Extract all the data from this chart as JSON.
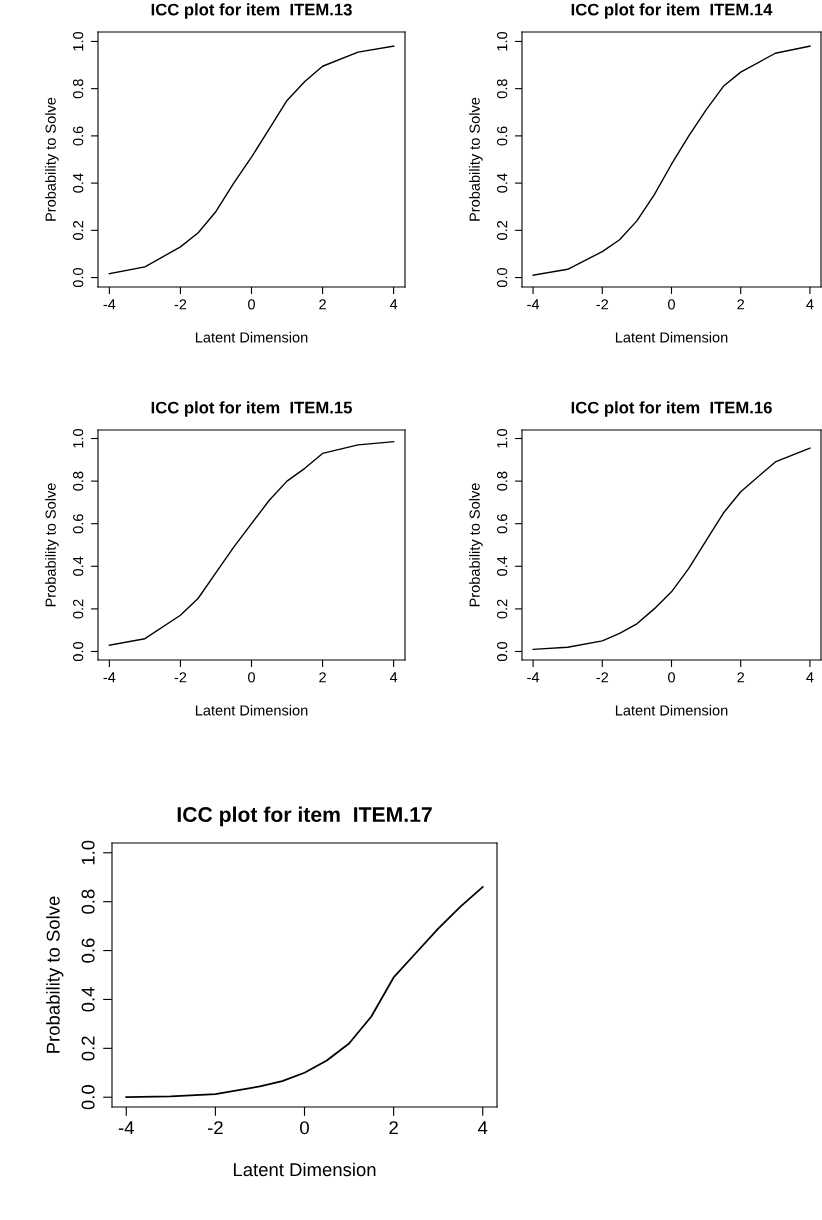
{
  "chart_data": [
    {
      "type": "line",
      "title": "ICC plot for item  ITEM.13",
      "xlabel": "Latent Dimension",
      "ylabel": "Probability to Solve",
      "xlim": [
        -4.32,
        4.32
      ],
      "ylim": [
        -0.04,
        1.04
      ],
      "xticks": [
        -4,
        -2,
        0,
        2,
        4
      ],
      "yticks": [
        {
          "value": 0,
          "label": "0.0"
        },
        {
          "value": 0.2,
          "label": "0.2"
        },
        {
          "value": 0.4,
          "label": "0.4"
        },
        {
          "value": 0.6,
          "label": "0.6"
        },
        {
          "value": 0.8,
          "label": "0.8"
        },
        {
          "value": 1,
          "label": "1.0"
        }
      ],
      "grid": false,
      "legend": false,
      "line_style": "solid",
      "x": [
        -4,
        -3,
        -2,
        -1.5,
        -1,
        -0.5,
        0,
        0.5,
        1,
        1.5,
        2,
        3,
        4
      ],
      "series": [
        {
          "color": "#000000",
          "values": [
            0.016,
            0.045,
            0.13,
            0.19,
            0.28,
            0.4,
            0.51,
            0.63,
            0.75,
            0.83,
            0.895,
            0.955,
            0.98
          ]
        }
      ]
    },
    {
      "type": "line",
      "title": "ICC plot for item  ITEM.14",
      "xlabel": "Latent Dimension",
      "ylabel": "Probability to Solve",
      "xlim": [
        -4.32,
        4.32
      ],
      "ylim": [
        -0.04,
        1.04
      ],
      "xticks": [
        -4,
        -2,
        0,
        2,
        4
      ],
      "yticks": [
        {
          "value": 0,
          "label": "0.0"
        },
        {
          "value": 0.2,
          "label": "0.2"
        },
        {
          "value": 0.4,
          "label": "0.4"
        },
        {
          "value": 0.6,
          "label": "0.6"
        },
        {
          "value": 0.8,
          "label": "0.8"
        },
        {
          "value": 1,
          "label": "1.0"
        }
      ],
      "grid": false,
      "legend": false,
      "line_style": "solid",
      "x": [
        -4,
        -3,
        -2,
        -1.5,
        -1,
        -0.5,
        0,
        0.5,
        1,
        1.5,
        2,
        3,
        4
      ],
      "series": [
        {
          "color": "#000000",
          "values": [
            0.01,
            0.035,
            0.11,
            0.16,
            0.24,
            0.35,
            0.48,
            0.6,
            0.71,
            0.81,
            0.87,
            0.95,
            0.98
          ]
        }
      ]
    },
    {
      "type": "line",
      "title": "ICC plot for item  ITEM.15",
      "xlabel": "Latent Dimension",
      "ylabel": "Probability to Solve",
      "xlim": [
        -4.32,
        4.32
      ],
      "ylim": [
        -0.04,
        1.04
      ],
      "xticks": [
        -4,
        -2,
        0,
        2,
        4
      ],
      "yticks": [
        {
          "value": 0,
          "label": "0.0"
        },
        {
          "value": 0.2,
          "label": "0.2"
        },
        {
          "value": 0.4,
          "label": "0.4"
        },
        {
          "value": 0.6,
          "label": "0.6"
        },
        {
          "value": 0.8,
          "label": "0.8"
        },
        {
          "value": 1,
          "label": "1.0"
        }
      ],
      "grid": false,
      "legend": false,
      "line_style": "solid",
      "x": [
        -4,
        -3,
        -2,
        -1.5,
        -1,
        -0.5,
        0,
        0.5,
        1,
        1.5,
        2,
        3,
        4
      ],
      "series": [
        {
          "color": "#000000",
          "values": [
            0.03,
            0.06,
            0.17,
            0.25,
            0.37,
            0.49,
            0.6,
            0.71,
            0.8,
            0.86,
            0.93,
            0.97,
            0.985
          ]
        }
      ]
    },
    {
      "type": "line",
      "title": "ICC plot for item  ITEM.16",
      "xlabel": "Latent Dimension",
      "ylabel": "Probability to Solve",
      "xlim": [
        -4.32,
        4.32
      ],
      "ylim": [
        -0.04,
        1.04
      ],
      "xticks": [
        -4,
        -2,
        0,
        2,
        4
      ],
      "yticks": [
        {
          "value": 0,
          "label": "0.0"
        },
        {
          "value": 0.2,
          "label": "0.2"
        },
        {
          "value": 0.4,
          "label": "0.4"
        },
        {
          "value": 0.6,
          "label": "0.6"
        },
        {
          "value": 0.8,
          "label": "0.8"
        },
        {
          "value": 1,
          "label": "1.0"
        }
      ],
      "grid": false,
      "legend": false,
      "line_style": "solid",
      "x": [
        -4,
        -3,
        -2,
        -1.5,
        -1,
        -0.5,
        0,
        0.5,
        1,
        1.5,
        2,
        3,
        4
      ],
      "series": [
        {
          "color": "#000000",
          "values": [
            0.01,
            0.02,
            0.05,
            0.085,
            0.13,
            0.2,
            0.28,
            0.39,
            0.52,
            0.65,
            0.75,
            0.89,
            0.955
          ]
        }
      ]
    },
    {
      "type": "line",
      "title": "ICC plot for item  ITEM.17",
      "xlabel": "Latent Dimension",
      "ylabel": "Probability to Solve",
      "xlim": [
        -4.32,
        4.32
      ],
      "ylim": [
        -0.04,
        1.04
      ],
      "xticks": [
        -4,
        -2,
        0,
        2,
        4
      ],
      "yticks": [
        {
          "value": 0,
          "label": "0.0"
        },
        {
          "value": 0.2,
          "label": "0.2"
        },
        {
          "value": 0.4,
          "label": "0.4"
        },
        {
          "value": 0.6,
          "label": "0.6"
        },
        {
          "value": 0.8,
          "label": "0.8"
        },
        {
          "value": 1,
          "label": "1.0"
        }
      ],
      "grid": false,
      "legend": false,
      "line_style": "solid",
      "x": [
        -4,
        -3,
        -2,
        -1,
        -0.5,
        0,
        0.5,
        1,
        1.5,
        2,
        2.5,
        3,
        3.5,
        4
      ],
      "series": [
        {
          "color": "#000000",
          "values": [
            0.0,
            0.003,
            0.013,
            0.044,
            0.066,
            0.1,
            0.15,
            0.22,
            0.33,
            0.49,
            0.59,
            0.69,
            0.78,
            0.86
          ]
        }
      ]
    }
  ]
}
